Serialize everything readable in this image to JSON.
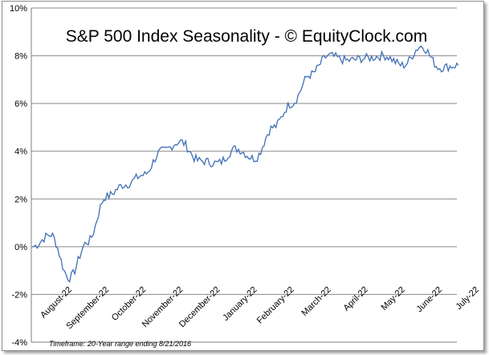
{
  "chart_data": {
    "type": "line",
    "title": "S&P 500 Index Seasonality - © EquityClock.com",
    "footnote": "Timeframe: 20-Year range ending 8/21/2016",
    "xlabel": "",
    "ylabel": "",
    "y_ticks": [
      "-4%",
      "-2%",
      "0%",
      "2%",
      "4%",
      "6%",
      "8%",
      "10%"
    ],
    "ylim": [
      -4,
      10
    ],
    "x_ticks": [
      "August-22",
      "September-22",
      "October-22",
      "November-22",
      "December-22",
      "January-22",
      "February-22",
      "March-22",
      "April-22",
      "May-22",
      "June-22",
      "July-22"
    ],
    "grid": "horizontal",
    "line_color": "#3f6fb5",
    "x": [
      "August-22",
      "Sep-01",
      "September-22",
      "Oct-01",
      "October-22",
      "Nov-01",
      "November-22",
      "Dec-01",
      "December-22",
      "Jan-01",
      "January-22",
      "Feb-01",
      "February-22",
      "Mar-01",
      "March-22",
      "Apr-01",
      "April-22",
      "May-01",
      "May-22",
      "Jun-01",
      "June-22",
      "Jul-01",
      "July-22",
      "Aug-21"
    ],
    "values": [
      0.0,
      0.5,
      -1.3,
      0.2,
      2.1,
      2.6,
      3.0,
      4.0,
      4.4,
      3.6,
      3.5,
      4.1,
      3.7,
      5.0,
      6.0,
      7.2,
      8.0,
      7.8,
      7.9,
      8.0,
      7.6,
      8.4,
      7.5,
      7.6
    ]
  }
}
